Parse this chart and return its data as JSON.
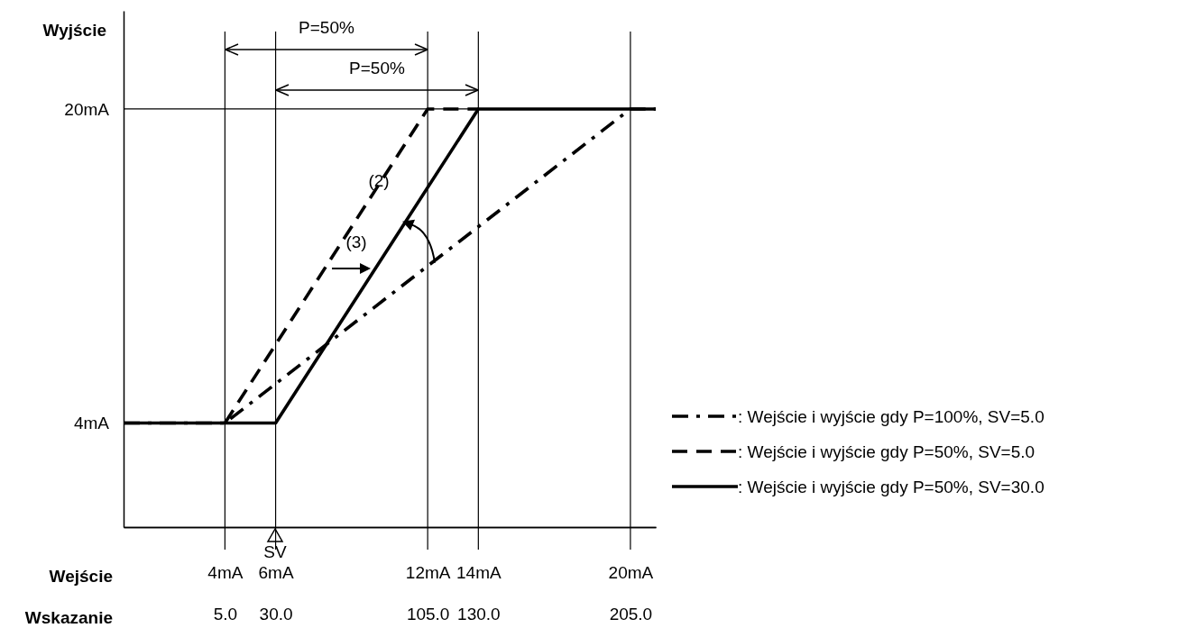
{
  "chart_data": {
    "type": "line",
    "ylabel": "Wyjście",
    "xlabel": "Wejście",
    "x2label": "Wskazanie",
    "xlim": [
      0,
      21
    ],
    "ylim": [
      -1.3,
      25
    ],
    "x2lim": [
      -45,
      217.5
    ],
    "xticks": [
      {
        "value": 4,
        "label": "4mA"
      },
      {
        "value": 6,
        "label": "6mA"
      },
      {
        "value": 12,
        "label": "12mA"
      },
      {
        "value": 14,
        "label": "14mA"
      },
      {
        "value": 20,
        "label": "20mA"
      }
    ],
    "x2ticks": [
      {
        "value": 5,
        "label": "5.0"
      },
      {
        "value": 30,
        "label": "30.0"
      },
      {
        "value": 105,
        "label": "105.0"
      },
      {
        "value": 130,
        "label": "130.0"
      },
      {
        "value": 205,
        "label": "205.0"
      }
    ],
    "yticks": [
      {
        "value": 4,
        "label": "4mA"
      },
      {
        "value": 20,
        "label": "20mA"
      }
    ],
    "grid": "x",
    "legend": "right",
    "marker": "none",
    "ref_lines": [
      {
        "axis": "y",
        "value": 20
      }
    ],
    "series": [
      {
        "name": ": Wejście i wyjście gdy P=100%, SV=5.0",
        "color": "#000000",
        "line_style": "dashdot",
        "x": [
          0,
          4,
          20,
          21
        ],
        "values": [
          4,
          4,
          20,
          20
        ]
      },
      {
        "name": ": Wejście i wyjście gdy P=50%, SV=5.0",
        "color": "#000000",
        "line_style": "dashed",
        "x": [
          4,
          12,
          14
        ],
        "values": [
          4,
          20,
          20
        ]
      },
      {
        "name": ": Wejście i wyjście gdy P=50%, SV=30.0",
        "color": "#000000",
        "line_style": "solid",
        "x": [
          0,
          6,
          14,
          21
        ],
        "values": [
          4,
          4,
          20,
          20
        ]
      }
    ],
    "annotations": [
      "P=50%",
      "P=50%",
      {
        "text": "(2)",
        "x": 11,
        "y": 14
      },
      "(3)",
      "SV"
    ]
  }
}
